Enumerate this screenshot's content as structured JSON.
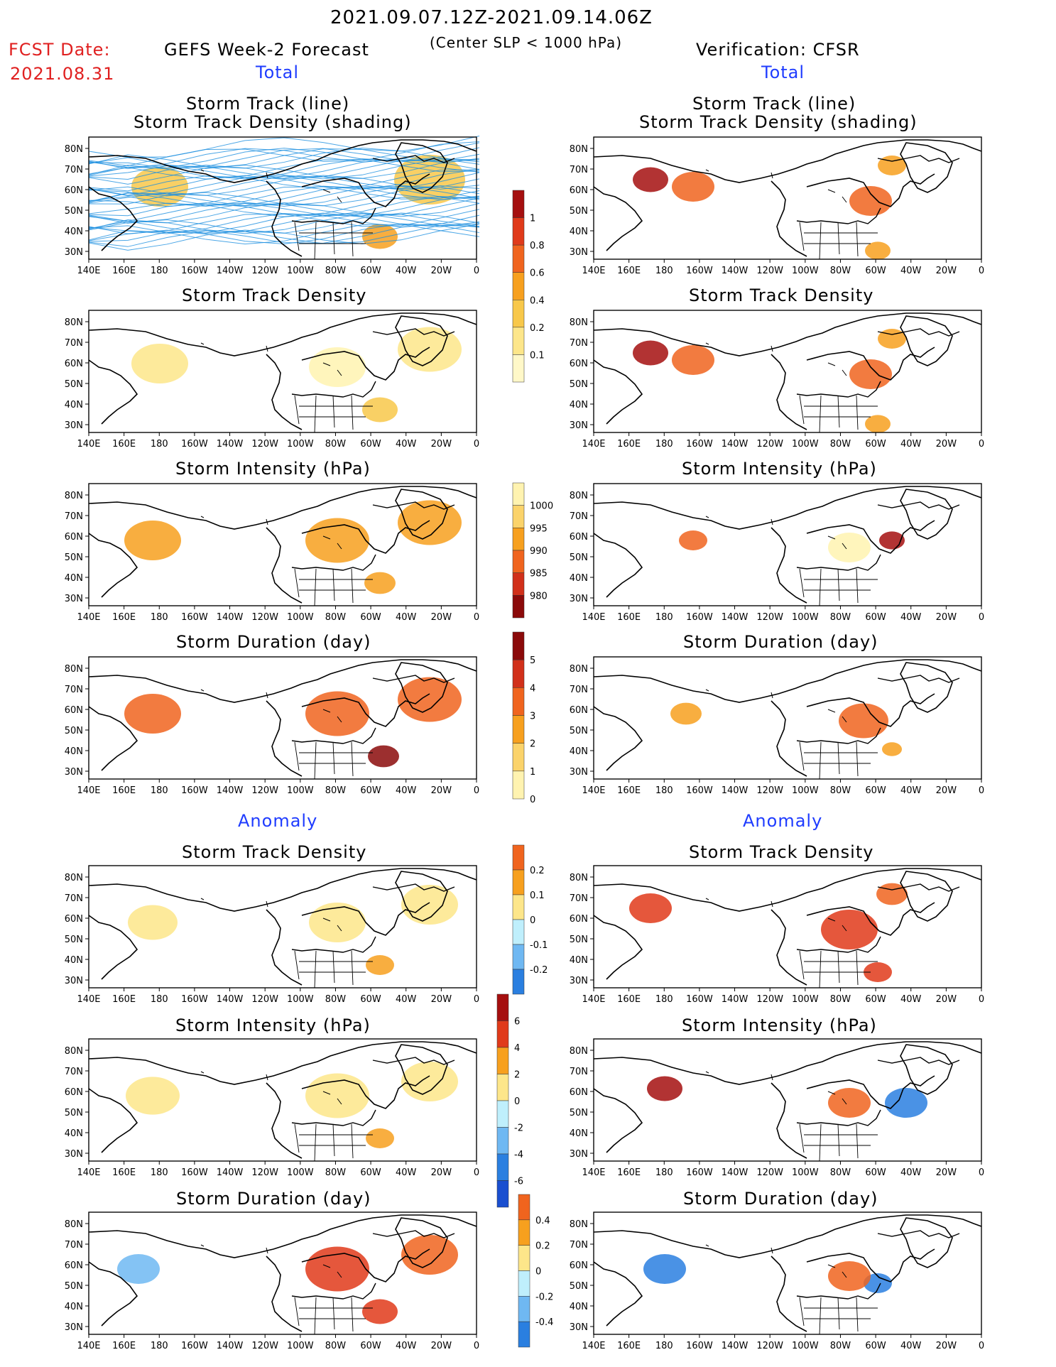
{
  "header": {
    "date_range": "2021.09.07.12Z-2021.09.14.06Z",
    "fcst_label": "FCST Date:",
    "fcst_date": "2021.08.31",
    "forecast_title": "GEFS Week-2 Forecast",
    "slp_note": "(Center SLP < 1000 hPa)",
    "verification": "Verification: CFSR",
    "total_left": "Total",
    "total_right": "Total",
    "anomaly_left": "Anomaly",
    "anomaly_right": "Anomaly"
  },
  "axis": {
    "lon_labels": [
      "140E",
      "160E",
      "180",
      "160W",
      "140W",
      "120W",
      "100W",
      "80W",
      "60W",
      "40W",
      "20W",
      "0"
    ],
    "lat_labels": [
      "80N",
      "70N",
      "60N",
      "50N",
      "40N",
      "30N"
    ]
  },
  "panels": [
    {
      "title1": "Storm Track (line)",
      "title2": "Storm Track Density (shading)"
    },
    {
      "title1": "Storm Track (line)",
      "title2": "Storm Track Density (shading)"
    },
    {
      "title1": "Storm Track Density"
    },
    {
      "title1": "Storm Track Density"
    },
    {
      "title1": "Storm Intensity (hPa)"
    },
    {
      "title1": "Storm Intensity (hPa)"
    },
    {
      "title1": "Storm Duration (day)"
    },
    {
      "title1": "Storm Duration (day)"
    },
    {
      "title1": "Storm Track Density"
    },
    {
      "title1": "Storm Track Density"
    },
    {
      "title1": "Storm Intensity (hPa)"
    },
    {
      "title1": "Storm Intensity (hPa)"
    },
    {
      "title1": "Storm Duration (day)"
    },
    {
      "title1": "Storm Duration (day)"
    }
  ],
  "colorbars": [
    {
      "labels": [
        "1",
        "0.8",
        "0.6",
        "0.4",
        "0.2",
        "0.1"
      ],
      "colors": [
        "#a50f0f",
        "#e03a1a",
        "#f0641e",
        "#f7a01e",
        "#f8c84a",
        "#fde68a",
        "#fff8c8"
      ]
    },
    {
      "labels": [
        "1000",
        "995",
        "990",
        "985",
        "980"
      ],
      "colors": [
        "#fff3b0",
        "#fbd36a",
        "#f7a01e",
        "#f0641e",
        "#d1301a",
        "#8b0a0a"
      ]
    },
    {
      "labels": [
        "5",
        "4",
        "3",
        "2",
        "1",
        "0"
      ],
      "colors": [
        "#8b0a0a",
        "#d1301a",
        "#f0641e",
        "#f7a01e",
        "#fbd36a",
        "#fff3b0"
      ]
    },
    {
      "labels": [
        "0.2",
        "0.1",
        "0",
        "-0.1",
        "-0.2"
      ],
      "colors": [
        "#f0641e",
        "#f7a01e",
        "#fde68a",
        "#bfeffc",
        "#6fb8f2",
        "#2a7fe0"
      ]
    },
    {
      "labels": [
        "6",
        "4",
        "2",
        "0",
        "-2",
        "-4",
        "-6"
      ],
      "colors": [
        "#a50f0f",
        "#e03a1a",
        "#f7a01e",
        "#fde68a",
        "#bfeffc",
        "#6fb8f2",
        "#2a7fe0",
        "#1a4fd0"
      ]
    },
    {
      "labels": [
        "0.4",
        "0.2",
        "0",
        "-0.2",
        "-0.4"
      ],
      "colors": [
        "#f0641e",
        "#f7a01e",
        "#fde68a",
        "#bfeffc",
        "#6fb8f2",
        "#2a7fe0"
      ]
    }
  ]
}
